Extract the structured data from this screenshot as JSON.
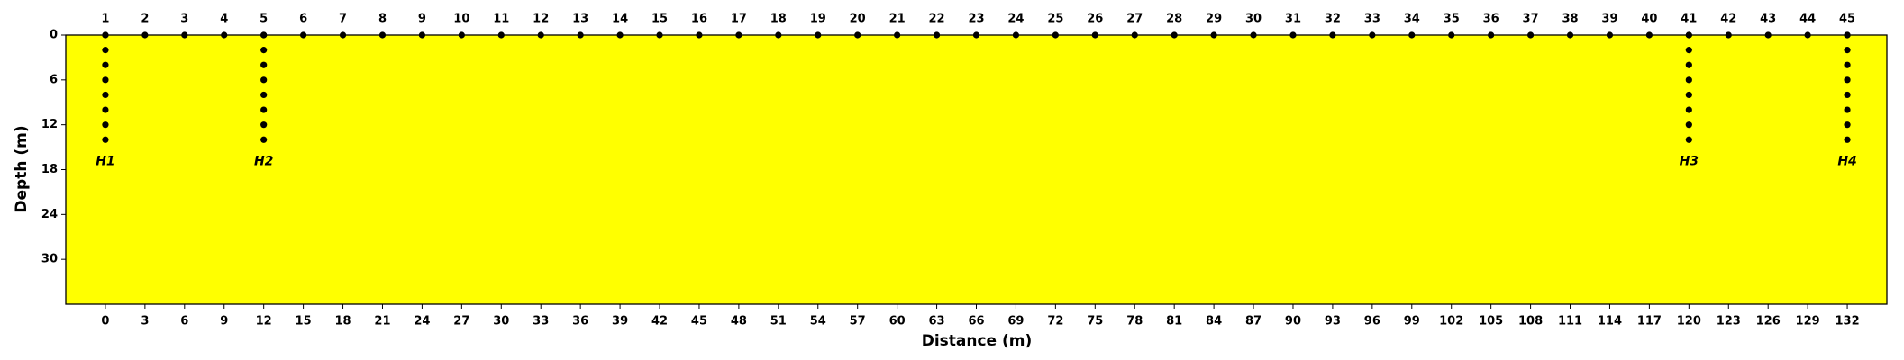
{
  "chart_data": {
    "type": "scatter",
    "xlabel": "Distance (m)",
    "ylabel": "Depth (m)",
    "xlim": [
      -3,
      135
    ],
    "ylim": [
      0,
      36
    ],
    "y_inverted": true,
    "xticks": [
      0,
      3,
      6,
      9,
      12,
      15,
      18,
      21,
      24,
      27,
      30,
      33,
      36,
      39,
      42,
      45,
      48,
      51,
      54,
      57,
      60,
      63,
      66,
      69,
      72,
      75,
      78,
      81,
      84,
      87,
      90,
      93,
      96,
      99,
      102,
      105,
      108,
      111,
      114,
      117,
      120,
      123,
      126,
      129,
      132
    ],
    "yticks": [
      0,
      6,
      12,
      18,
      24,
      30
    ],
    "background": "#ffff00",
    "color": "#000000",
    "electrodes": {
      "x": [
        0,
        3,
        6,
        9,
        12,
        15,
        18,
        21,
        24,
        27,
        30,
        33,
        36,
        39,
        42,
        45,
        48,
        51,
        54,
        57,
        60,
        63,
        66,
        69,
        72,
        75,
        78,
        81,
        84,
        87,
        90,
        93,
        96,
        99,
        102,
        105,
        108,
        111,
        114,
        117,
        120,
        123,
        126,
        129,
        132
      ],
      "y": [
        0,
        0,
        0,
        0,
        0,
        0,
        0,
        0,
        0,
        0,
        0,
        0,
        0,
        0,
        0,
        0,
        0,
        0,
        0,
        0,
        0,
        0,
        0,
        0,
        0,
        0,
        0,
        0,
        0,
        0,
        0,
        0,
        0,
        0,
        0,
        0,
        0,
        0,
        0,
        0,
        0,
        0,
        0,
        0,
        0
      ],
      "labels": [
        1,
        2,
        3,
        4,
        5,
        6,
        7,
        8,
        9,
        10,
        11,
        12,
        13,
        14,
        15,
        16,
        17,
        18,
        19,
        20,
        21,
        22,
        23,
        24,
        25,
        26,
        27,
        28,
        29,
        30,
        31,
        32,
        33,
        34,
        35,
        36,
        37,
        38,
        39,
        40,
        41,
        42,
        43,
        44,
        45
      ]
    },
    "boreholes": [
      {
        "name": "H1",
        "x": [
          0,
          0,
          0,
          0,
          0,
          0,
          0,
          0
        ],
        "y": [
          0,
          2,
          4,
          6,
          8,
          10,
          12,
          14
        ]
      },
      {
        "name": "H2",
        "x": [
          12,
          12,
          12,
          12,
          12,
          12,
          12,
          12
        ],
        "y": [
          0,
          2,
          4,
          6,
          8,
          10,
          12,
          14
        ]
      },
      {
        "name": "H3",
        "x": [
          120,
          120,
          120,
          120,
          120,
          120,
          120,
          120
        ],
        "y": [
          0,
          2,
          4,
          6,
          8,
          10,
          12,
          14
        ]
      },
      {
        "name": "H4",
        "x": [
          132,
          132,
          132,
          132,
          132,
          132,
          132,
          132
        ],
        "y": [
          0,
          2,
          4,
          6,
          8,
          10,
          12,
          14
        ]
      }
    ]
  }
}
